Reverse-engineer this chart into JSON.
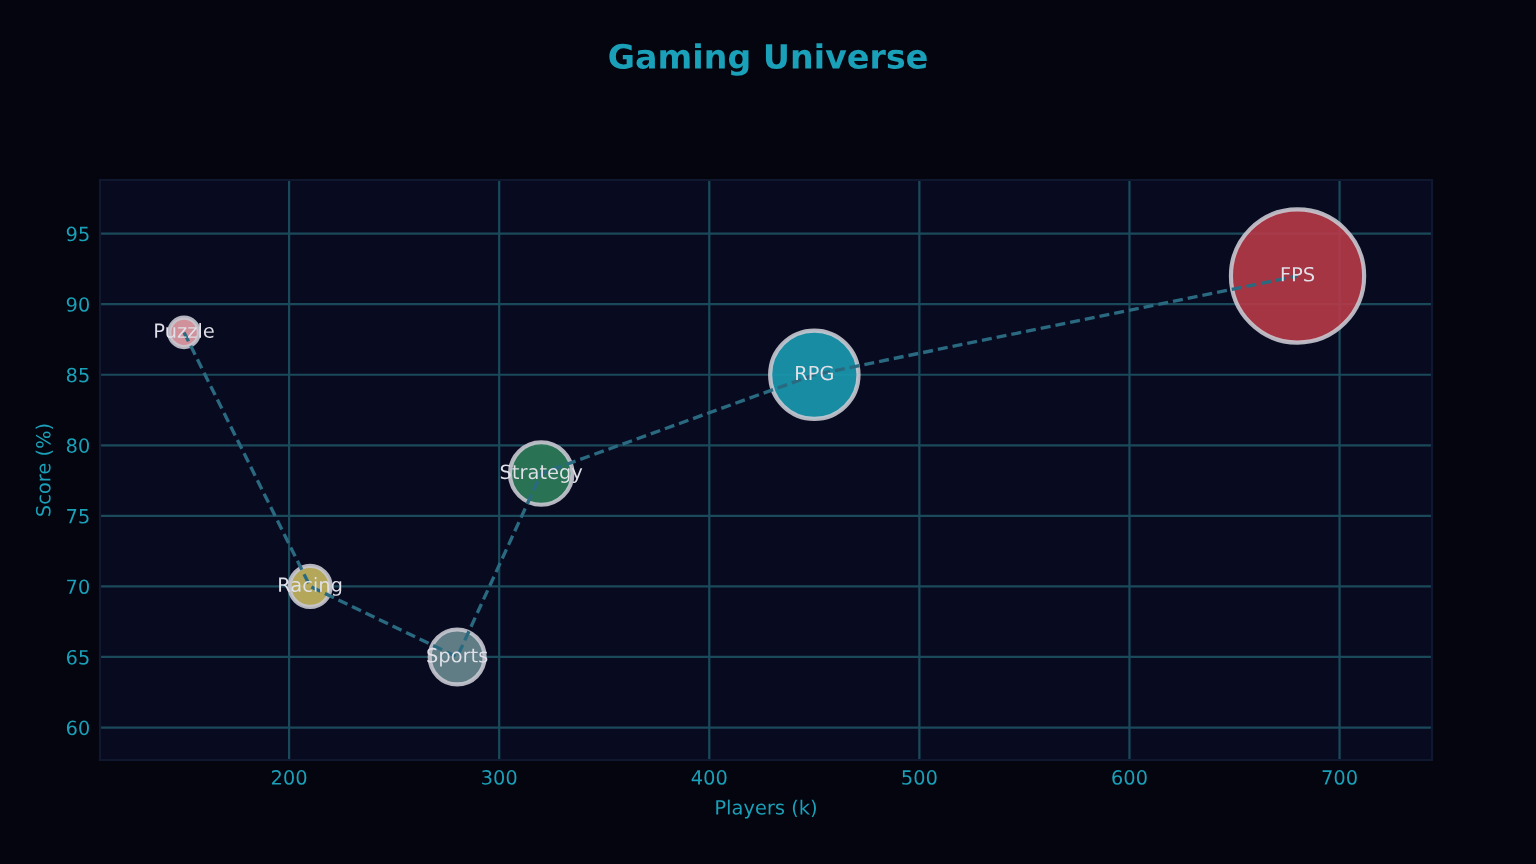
{
  "chart_data": {
    "type": "bubble",
    "title": "Gaming Universe",
    "xlabel": "Players (k)",
    "ylabel": "Score (%)",
    "series": [
      {
        "type": "line",
        "color": "#2a6a80",
        "line_style": "dashed",
        "marker": "none",
        "x": [
          150,
          210,
          280,
          320,
          450,
          680
        ],
        "values": [
          88,
          70,
          65,
          78,
          85,
          92
        ]
      },
      {
        "x": [
          150,
          210,
          280,
          320,
          450,
          680
        ],
        "values": [
          88,
          70,
          65,
          78,
          85,
          92
        ],
        "sizes": [
          0.049,
          0.095,
          0.17,
          0.22,
          0.44,
          1
        ],
        "colors": [
          "#e8a0a8",
          "#c8b860",
          "#6a8a90",
          "#2e7d5a",
          "#1a9ab0",
          "#b83a48"
        ]
      }
    ],
    "annotations": [
      {
        "text": "Puzzle",
        "x": 150,
        "y": 88
      },
      {
        "text": "Racing",
        "x": 210,
        "y": 70
      },
      {
        "text": "Sports",
        "x": 280,
        "y": 65
      },
      {
        "text": "Strategy",
        "x": 320,
        "y": 78
      },
      {
        "text": "RPG",
        "x": 450,
        "y": 85
      },
      {
        "text": "FPS",
        "x": 680,
        "y": 92
      }
    ],
    "xlim": [
      110,
      744
    ],
    "xticks": [
      200,
      300,
      400,
      500,
      600,
      700
    ],
    "ylim": [
      57.7,
      98.8
    ],
    "yticks": [
      60,
      65,
      70,
      75,
      80,
      85,
      90,
      95
    ],
    "grid": true
  }
}
